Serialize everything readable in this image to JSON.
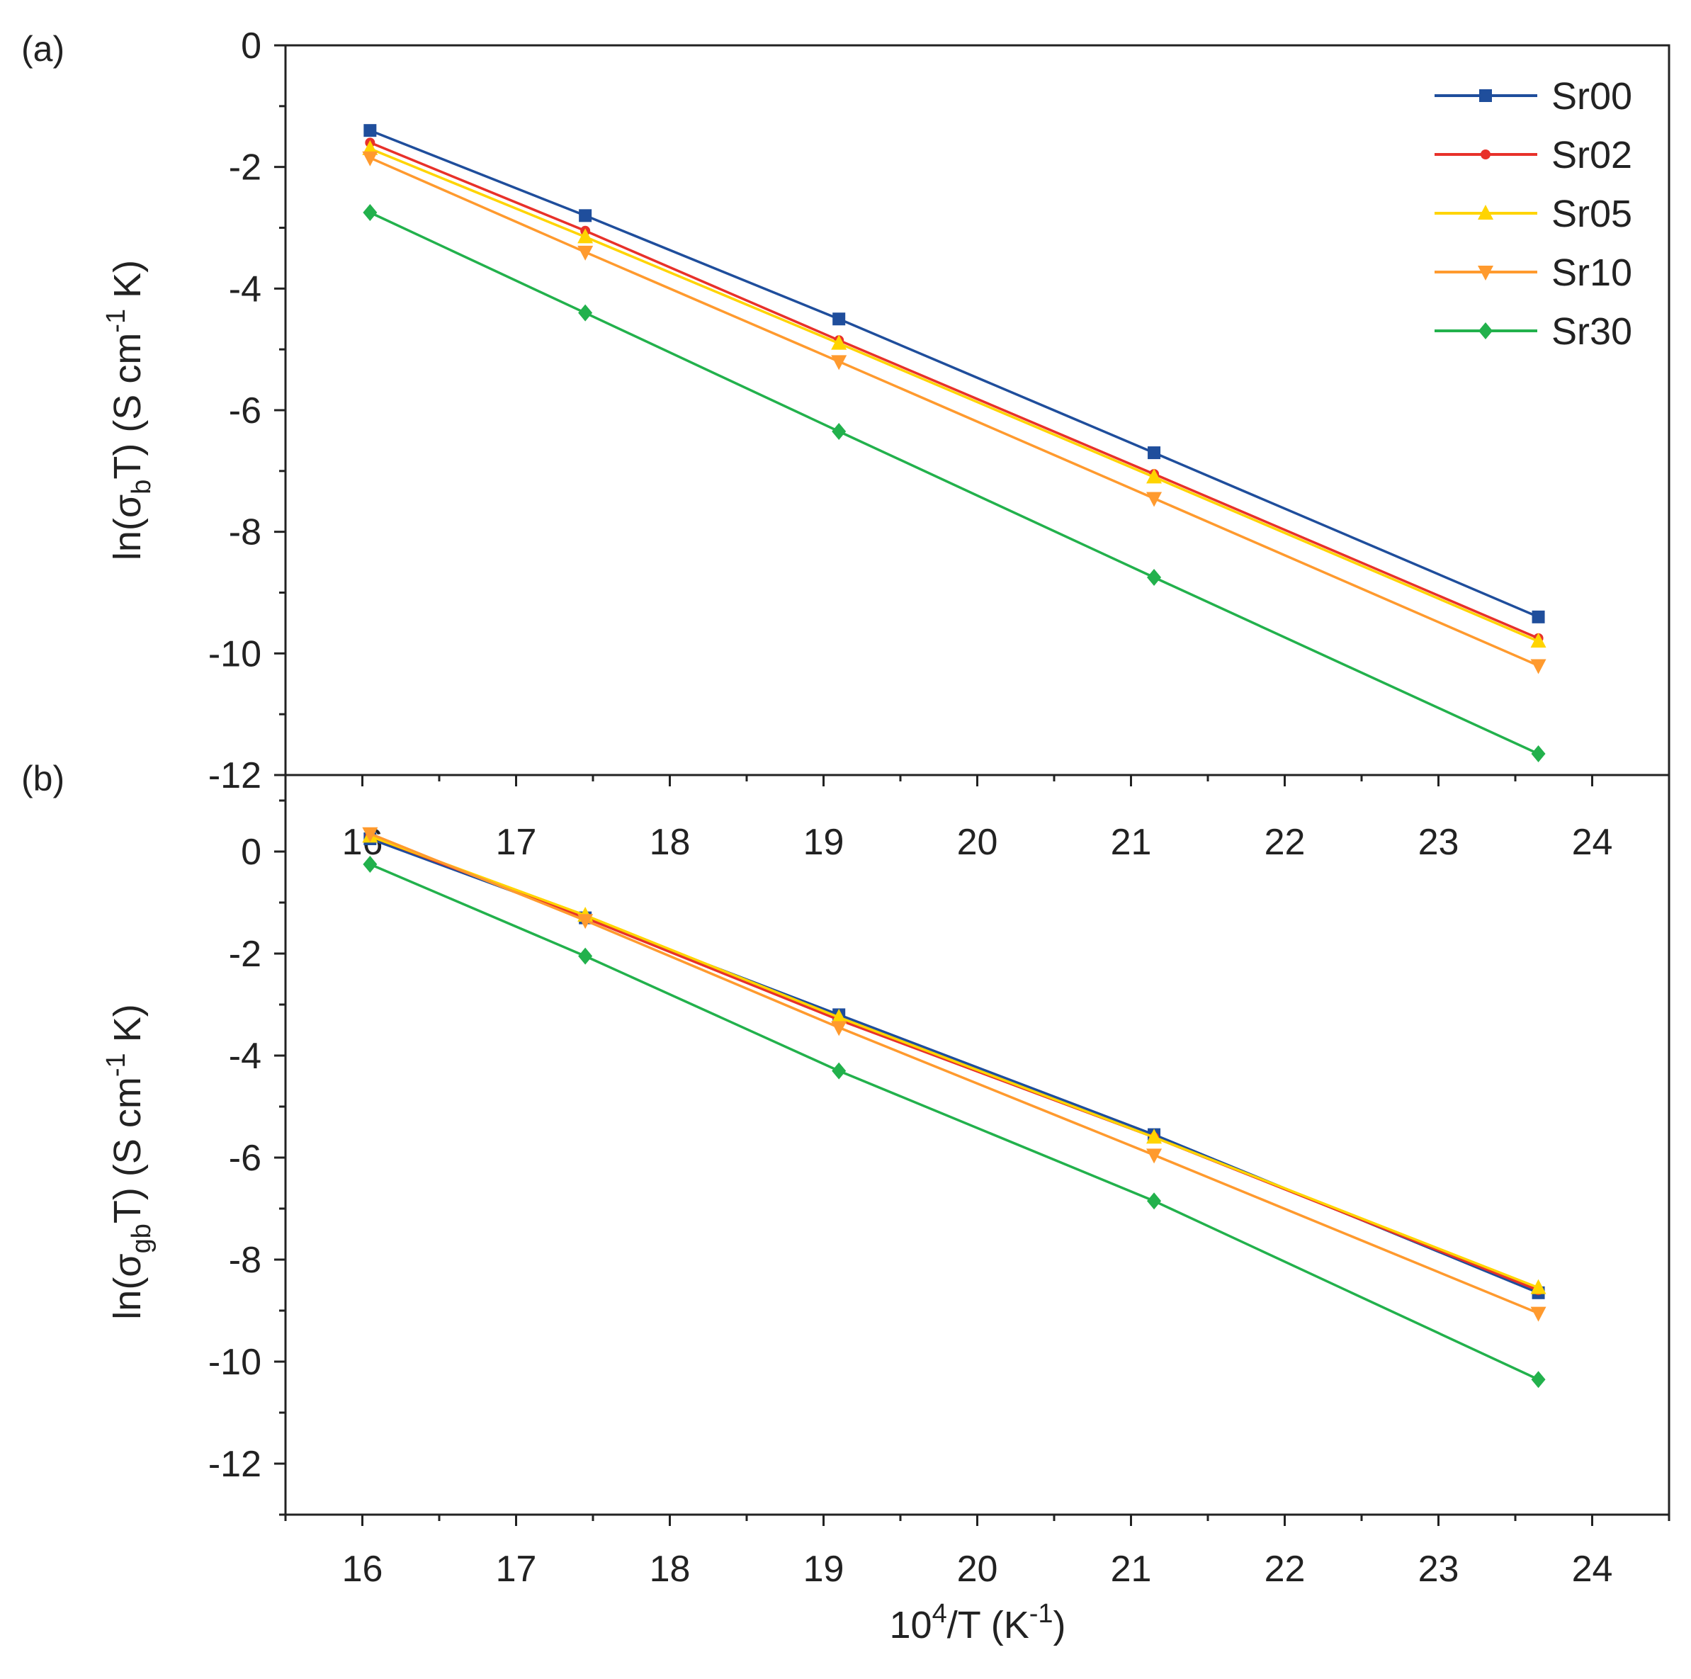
{
  "chart_data": [
    {
      "type": "line",
      "panel_label": "(a)",
      "ylabel": {
        "prefix": "ln(σ",
        "sub": "b",
        "mid": "T) (S cm",
        "sup": "-1",
        "suffix": " K)"
      },
      "xlim": [
        15.5,
        24.5
      ],
      "ylim": [
        -12,
        0
      ],
      "x_ticks": [
        16,
        17,
        18,
        19,
        20,
        21,
        22,
        23,
        24
      ],
      "x_tick_labels": [
        "16",
        "17",
        "18",
        "19",
        "20",
        "21",
        "22",
        "23",
        "24"
      ],
      "y_ticks": [
        0,
        -2,
        -4,
        -6,
        -8,
        -10,
        -12
      ],
      "y_tick_labels": [
        "0",
        "-2",
        "-4",
        "-6",
        "-8",
        "-10",
        "-12"
      ],
      "x": [
        16.05,
        17.45,
        19.1,
        21.15,
        23.65
      ],
      "series": [
        {
          "name": "Sr00",
          "color": "#1f4e9c",
          "marker": "square",
          "values": [
            -1.4,
            -2.8,
            -4.5,
            -6.7,
            -9.4
          ]
        },
        {
          "name": "Sr02",
          "color": "#e8312a",
          "marker": "circle",
          "values": [
            -1.6,
            -3.05,
            -4.85,
            -7.05,
            -9.75
          ]
        },
        {
          "name": "Sr05",
          "color": "#ffd400",
          "marker": "triangle-up",
          "values": [
            -1.7,
            -3.15,
            -4.9,
            -7.1,
            -9.8
          ]
        },
        {
          "name": "Sr10",
          "color": "#ff9a2e",
          "marker": "triangle-down",
          "values": [
            -1.85,
            -3.4,
            -5.2,
            -7.45,
            -10.2
          ]
        },
        {
          "name": "Sr30",
          "color": "#22b14c",
          "marker": "diamond",
          "values": [
            -2.75,
            -4.4,
            -6.35,
            -8.75,
            -11.65
          ]
        }
      ],
      "legend": {
        "location": "top-right",
        "entries": [
          "Sr00",
          "Sr02",
          "Sr05",
          "Sr10",
          "Sr30"
        ]
      }
    },
    {
      "type": "line",
      "panel_label": "(b)",
      "xlabel": {
        "prefix": "10",
        "sup": "4",
        "mid": "/T (K",
        "sup2": "-1",
        "suffix": ")"
      },
      "ylabel": {
        "prefix": "ln(σ",
        "sub": "gb",
        "mid": "T) (S cm",
        "sup": "-1",
        "suffix": " K)"
      },
      "xlim": [
        15.5,
        24.5
      ],
      "ylim": [
        -13,
        1.5
      ],
      "x_ticks": [
        16,
        17,
        18,
        19,
        20,
        21,
        22,
        23,
        24
      ],
      "x_tick_labels": [
        "16",
        "17",
        "18",
        "19",
        "20",
        "21",
        "22",
        "23",
        "24"
      ],
      "y_ticks": [
        0,
        -2,
        -4,
        -6,
        -8,
        -10,
        -12
      ],
      "y_tick_labels": [
        "0",
        "-2",
        "-4",
        "-6",
        "-8",
        "-10",
        "-12"
      ],
      "x": [
        16.05,
        17.45,
        19.1,
        21.15,
        23.65
      ],
      "series": [
        {
          "name": "Sr00",
          "color": "#1f4e9c",
          "marker": "square",
          "values": [
            0.25,
            -1.3,
            -3.2,
            -5.55,
            -8.65
          ]
        },
        {
          "name": "Sr02",
          "color": "#e8312a",
          "marker": "circle",
          "values": [
            0.3,
            -1.3,
            -3.3,
            -5.6,
            -8.6
          ]
        },
        {
          "name": "Sr05",
          "color": "#ffd400",
          "marker": "triangle-up",
          "values": [
            0.3,
            -1.25,
            -3.25,
            -5.6,
            -8.55
          ]
        },
        {
          "name": "Sr10",
          "color": "#ff9a2e",
          "marker": "triangle-down",
          "values": [
            0.35,
            -1.35,
            -3.45,
            -5.95,
            -9.05
          ]
        },
        {
          "name": "Sr30",
          "color": "#22b14c",
          "marker": "diamond",
          "values": [
            -0.25,
            -2.05,
            -4.3,
            -6.85,
            -10.35
          ]
        }
      ]
    }
  ]
}
